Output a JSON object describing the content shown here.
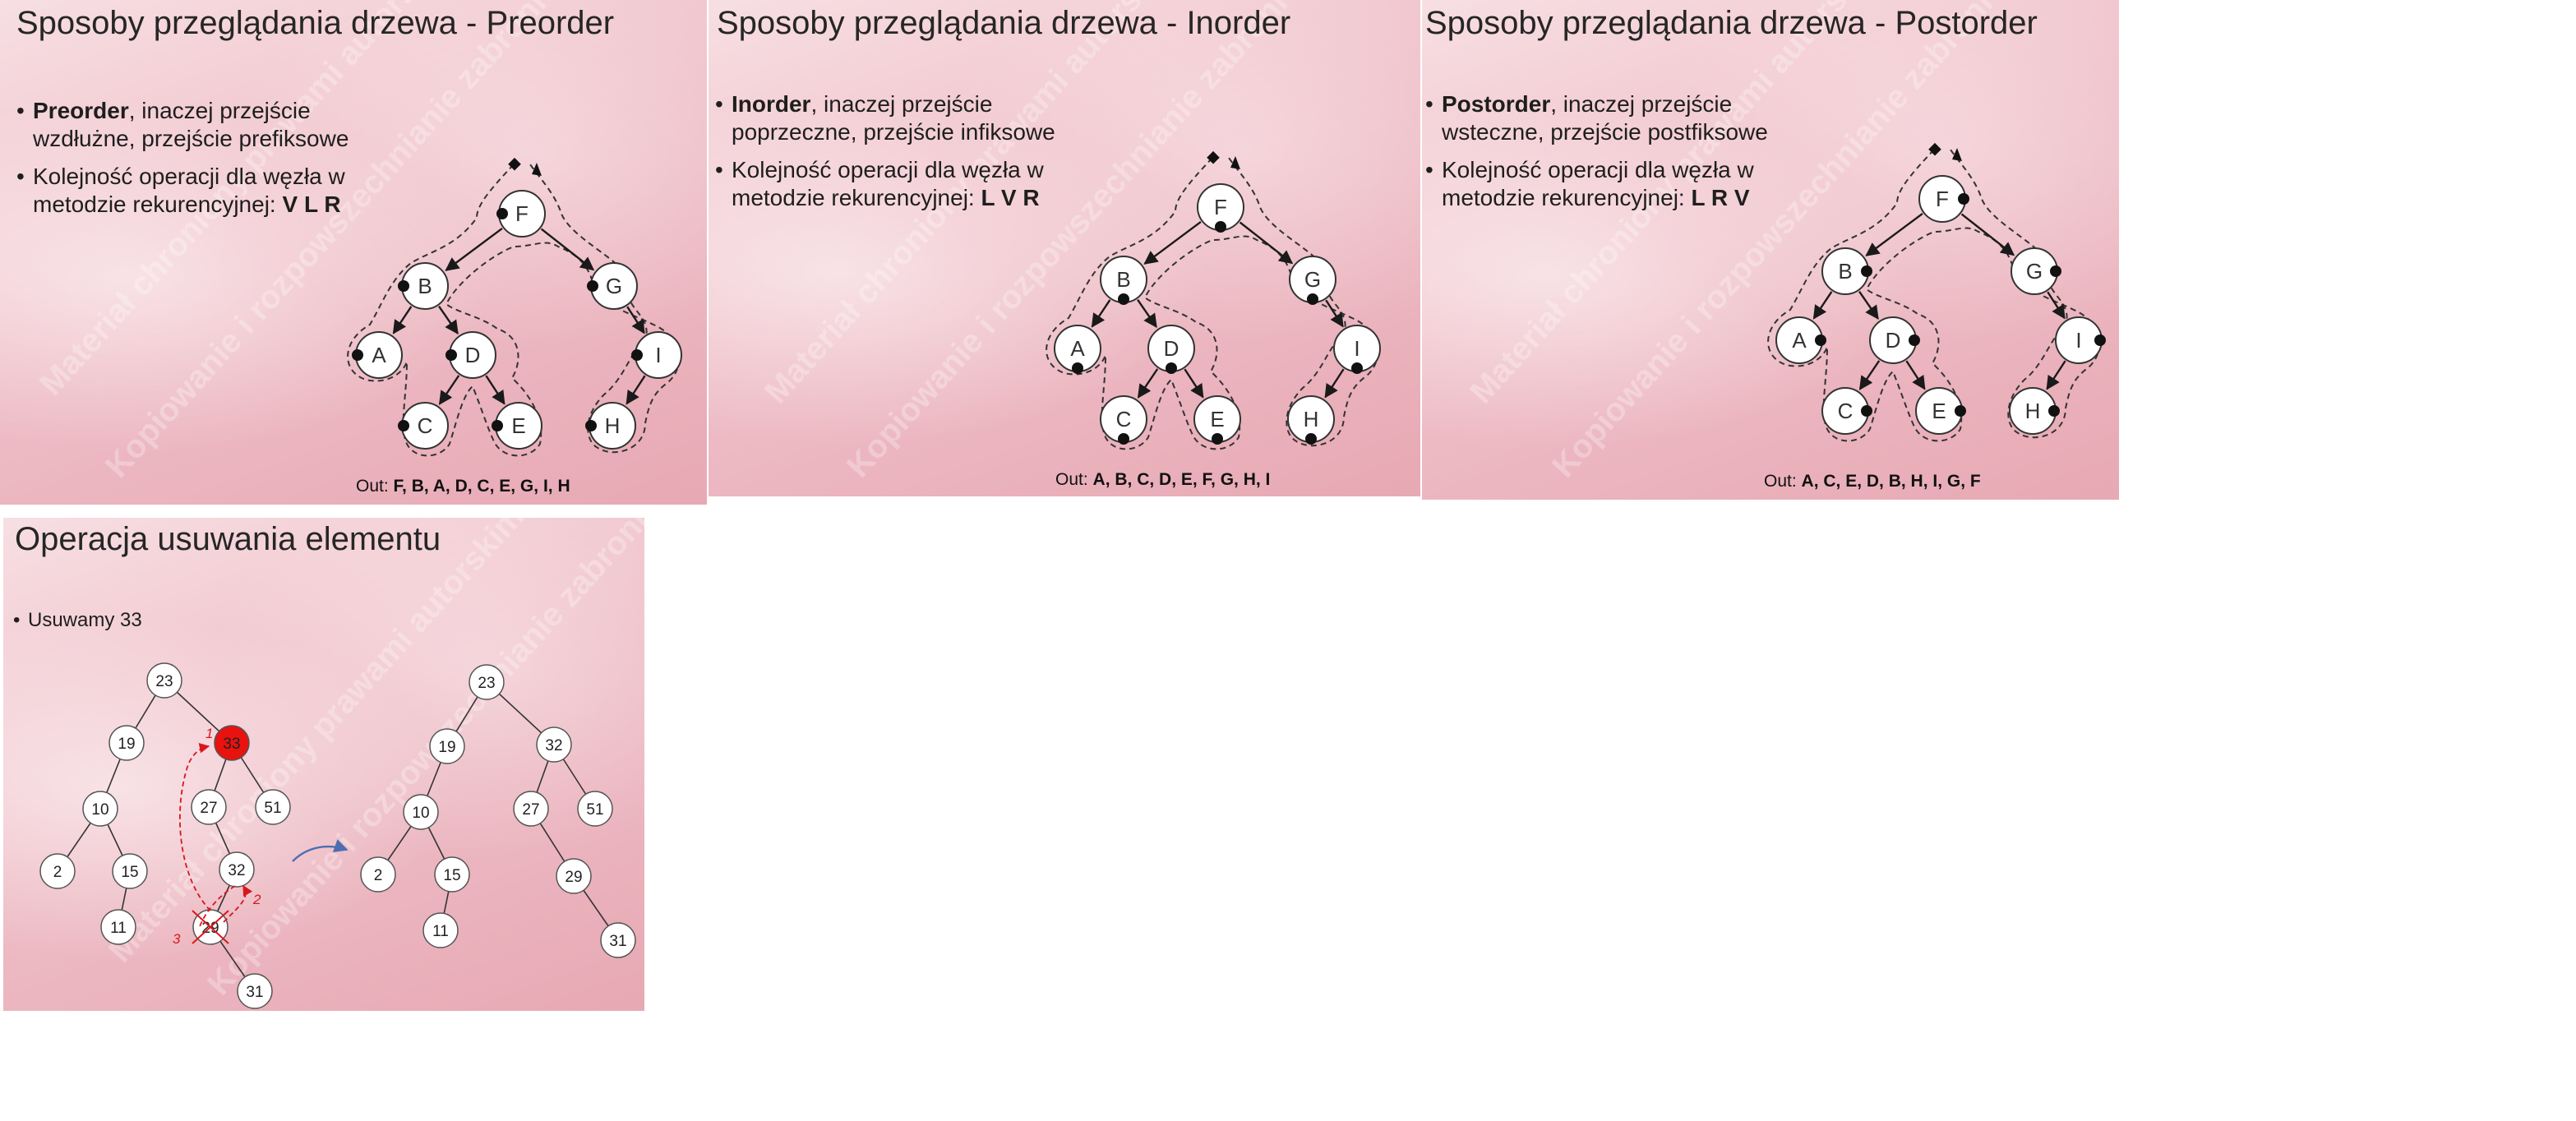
{
  "slides": [
    {
      "title": "Sposoby przeglądania drzewa - Preorder",
      "bullet1_bold": "Preorder",
      "bullet1_rest": ", inaczej przejście",
      "bullet1_line2": "wzdłużne, przejście prefiksowe",
      "bullet2_line1": "Kolejność operacji dla węzła w",
      "bullet2_line2": "metodzie rekurencyjnej: ",
      "bullet2_bold": "V L R",
      "out_label": "Out: ",
      "out_value": "F, B, A, D, C, E, G, I, H"
    },
    {
      "title": "Sposoby przeglądania drzewa - Inorder",
      "bullet1_bold": "Inorder",
      "bullet1_rest": ", inaczej przejście",
      "bullet1_line2": "poprzeczne, przejście infiksowe",
      "bullet2_line1": "Kolejność operacji dla węzła w",
      "bullet2_line2": "metodzie rekurencyjnej: ",
      "bullet2_bold": "L V R",
      "out_label": "Out: ",
      "out_value": "A, B, C, D, E, F, G, H, I"
    },
    {
      "title": "Sposoby przeglądania drzewa - Postorder",
      "bullet1_bold": "Postorder",
      "bullet1_rest": ", inaczej przejście",
      "bullet1_line2": "wsteczne, przejście postfiksowe",
      "bullet2_line1": "Kolejność operacji dla węzła w",
      "bullet2_line2": "metodzie rekurencyjnej: ",
      "bullet2_bold": "L R V",
      "out_label": "Out: ",
      "out_value": "A, C, E, D, B, H, I, G, F"
    }
  ],
  "traversal_tree_nodes": [
    "F",
    "B",
    "G",
    "A",
    "D",
    "I",
    "C",
    "E",
    "H"
  ],
  "delete_slide": {
    "title": "Operacja usuwania elementu",
    "bullet": "Usuwamy 33",
    "before_nodes": [
      "23",
      "19",
      "33",
      "10",
      "27",
      "51",
      "2",
      "15",
      "32",
      "11",
      "29",
      "31"
    ],
    "after_nodes": [
      "23",
      "19",
      "32",
      "10",
      "27",
      "51",
      "2",
      "15",
      "29",
      "11",
      "31"
    ],
    "step_labels": [
      "1",
      "2",
      "3"
    ],
    "highlight_color": "#e8120f",
    "annotation_color": "#d9161c",
    "arrow_color": "#4a6fb0"
  },
  "watermark_lines": [
    "Materiał chroniony prawami autorskimi",
    "Kopiowanie i rozpowszechnianie zabronione"
  ]
}
